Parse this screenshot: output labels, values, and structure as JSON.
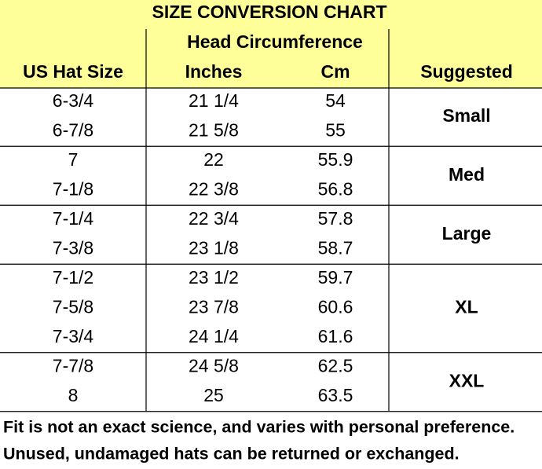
{
  "header": {
    "title": "SIZE CONVERSION CHART",
    "group_label": "Head Circumference",
    "columns": [
      "US Hat Size",
      "Inches",
      "Cm",
      "Suggested"
    ]
  },
  "table": {
    "groups": [
      {
        "suggested": "Small",
        "rows": [
          [
            "6-3/4",
            "21 1/4",
            "54"
          ],
          [
            "6-7/8",
            "21 5/8",
            "55"
          ]
        ]
      },
      {
        "suggested": "Med",
        "rows": [
          [
            "7",
            "22",
            "55.9"
          ],
          [
            "7-1/8",
            "22 3/8",
            "56.8"
          ]
        ]
      },
      {
        "suggested": "Large",
        "rows": [
          [
            "7-1/4",
            "22 3/4",
            "57.8"
          ],
          [
            "7-3/8",
            "23 1/8",
            "58.7"
          ]
        ]
      },
      {
        "suggested": "XL",
        "rows": [
          [
            "7-1/2",
            "23 1/2",
            "59.7"
          ],
          [
            "7-5/8",
            "23 7/8",
            "60.6"
          ],
          [
            "7-3/4",
            "24 1/4",
            "61.6"
          ]
        ]
      },
      {
        "suggested": "XXL",
        "rows": [
          [
            "7-7/8",
            "24 5/8",
            "62.5"
          ],
          [
            "8",
            "25",
            "63.5"
          ]
        ]
      }
    ]
  },
  "footer": {
    "notes": [
      "Fit is not an exact science, and varies with personal preference.",
      "Unused, undamaged hats can be returned or exchanged."
    ]
  }
}
